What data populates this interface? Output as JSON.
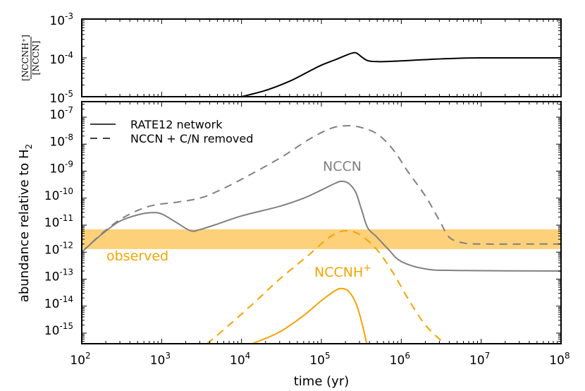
{
  "chart_data": [
    {
      "type": "line",
      "panel": "top",
      "ylabel_numerator": "[NCCNH⁺]",
      "ylabel_denominator": "[NCCN]",
      "xscale": "log",
      "yscale": "log",
      "xlim": [
        100,
        100000000
      ],
      "ylim": [
        1e-05,
        0.001
      ],
      "yticks": [
        {
          "exp": "-3",
          "value": 0.001
        },
        {
          "exp": "-4",
          "value": 0.0001
        },
        {
          "exp": "-5",
          "value": 1e-05
        }
      ],
      "series": [
        {
          "name": "ratio",
          "color": "#000000",
          "style": "solid",
          "points": [
            [
              10000,
              1e-05
            ],
            [
              20000,
              1.45e-05
            ],
            [
              40000,
              2.5e-05
            ],
            [
              70000,
              4.5e-05
            ],
            [
              100000,
              6.5e-05
            ],
            [
              150000,
              9e-05
            ],
            [
              200000,
              0.000115
            ],
            [
              250000,
              0.000135
            ],
            [
              280000,
              0.00013
            ],
            [
              320000,
              0.000105
            ],
            [
              380000,
              8.5e-05
            ],
            [
              500000,
              8e-05
            ],
            [
              800000,
              8.2e-05
            ],
            [
              2000000,
              9e-05
            ],
            [
              5000000,
              9.75e-05
            ],
            [
              10000000,
              0.0001
            ],
            [
              100000000,
              0.0001
            ]
          ]
        }
      ]
    },
    {
      "type": "line",
      "panel": "bottom",
      "xlabel": "time (yr)",
      "ylabel": "abundance relative to H",
      "ylabel_sub": "2",
      "xscale": "log",
      "yscale": "log",
      "xlim": [
        100,
        100000000
      ],
      "ylim": [
        4e-16,
        3.7e-07
      ],
      "xticks": [
        {
          "exp": "2",
          "value": 100
        },
        {
          "exp": "3",
          "value": 1000
        },
        {
          "exp": "4",
          "value": 10000
        },
        {
          "exp": "5",
          "value": 100000
        },
        {
          "exp": "6",
          "value": 1000000
        },
        {
          "exp": "7",
          "value": 10000000
        },
        {
          "exp": "8",
          "value": 100000000
        }
      ],
      "yticks": [
        {
          "exp": "-7",
          "value": 1e-07
        },
        {
          "exp": "-8",
          "value": 1e-08
        },
        {
          "exp": "-9",
          "value": 1e-09
        },
        {
          "exp": "-10",
          "value": 1e-10
        },
        {
          "exp": "-11",
          "value": 1e-11
        },
        {
          "exp": "-12",
          "value": 1e-12
        },
        {
          "exp": "-13",
          "value": 1e-13
        },
        {
          "exp": "-14",
          "value": 1e-14
        },
        {
          "exp": "-15",
          "value": 1e-15
        }
      ],
      "legend": {
        "placement": "top-left",
        "entries": [
          {
            "label": "RATE12 network",
            "style": "solid"
          },
          {
            "label": "NCCN + C/N removed",
            "style": "dashed"
          }
        ]
      },
      "band": {
        "label": "observed",
        "low": 1.3e-12,
        "high": 7e-12,
        "color": "#fdd17a"
      },
      "annotations": [
        {
          "text": "NCCN",
          "color": "#808080",
          "at": [
            180000,
            1.5e-09
          ]
        },
        {
          "text": "NCCNH",
          "sup": "+",
          "color": "#f5a300",
          "at": [
            180000,
            1e-13
          ]
        },
        {
          "text": "observed",
          "color": "#f5a300",
          "at": [
            400,
            6e-13
          ]
        }
      ],
      "series": [
        {
          "name": "NCCN (RATE12 network)",
          "color": "#808080",
          "style": "solid",
          "points": [
            [
              100,
              1e-12
            ],
            [
              150,
              3e-12
            ],
            [
              200,
              6e-12
            ],
            [
              300,
              1.4e-11
            ],
            [
              500,
              2.4e-11
            ],
            [
              750,
              2.9e-11
            ],
            [
              1000,
              2.6e-11
            ],
            [
              1500,
              1.3e-11
            ],
            [
              2300,
              6.2e-12
            ],
            [
              3000,
              6.8e-12
            ],
            [
              5000,
              1.1e-11
            ],
            [
              10000,
              2.2e-11
            ],
            [
              30000,
              5e-11
            ],
            [
              60000,
              1e-10
            ],
            [
              100000,
              2e-10
            ],
            [
              150000,
              3.6e-10
            ],
            [
              180000,
              4.2e-10
            ],
            [
              220000,
              3.5e-10
            ],
            [
              270000,
              1.6e-10
            ],
            [
              320000,
              3.5e-11
            ],
            [
              380000,
              8e-12
            ],
            [
              500000,
              3.5e-12
            ],
            [
              700000,
              1.2e-12
            ],
            [
              1000000,
              4.5e-13
            ],
            [
              2000000,
              2.4e-13
            ],
            [
              5000000,
              2.1e-13
            ],
            [
              100000000,
              2e-13
            ]
          ]
        },
        {
          "name": "NCCN (NCCN + C/N removed)",
          "color": "#808080",
          "style": "dashed",
          "points": [
            [
              100,
              1e-12
            ],
            [
              150,
              3.1e-12
            ],
            [
              200,
              6.5e-12
            ],
            [
              300,
              1.6e-11
            ],
            [
              500,
              3.5e-11
            ],
            [
              800,
              5.5e-11
            ],
            [
              1500,
              7e-11
            ],
            [
              3000,
              1e-10
            ],
            [
              5000,
              1.8e-10
            ],
            [
              10000,
              5e-10
            ],
            [
              30000,
              3e-09
            ],
            [
              70000,
              1.5e-08
            ],
            [
              130000,
              3.8e-08
            ],
            [
              200000,
              4.8e-08
            ],
            [
              300000,
              4.3e-08
            ],
            [
              500000,
              2.4e-08
            ],
            [
              800000,
              6e-09
            ],
            [
              1200000,
              1e-09
            ],
            [
              2000000,
              1.2e-10
            ],
            [
              3000000,
              1.5e-11
            ],
            [
              4000000,
              3.5e-12
            ],
            [
              6000000,
              2.2e-12
            ],
            [
              10000000,
              2e-12
            ],
            [
              100000000,
              2e-12
            ]
          ]
        },
        {
          "name": "NCCNH+ (RATE12 network)",
          "color": "#f5a300",
          "style": "solid",
          "points": [
            [
              13500,
              4e-16
            ],
            [
              30000,
              1.1e-15
            ],
            [
              60000,
              4.5e-15
            ],
            [
              100000,
              1.6e-14
            ],
            [
              150000,
              3.8e-14
            ],
            [
              180000,
              4.5e-14
            ],
            [
              220000,
              3.5e-14
            ],
            [
              270000,
              1.3e-14
            ],
            [
              320000,
              2.5e-15
            ],
            [
              370000,
              4e-16
            ]
          ]
        },
        {
          "name": "NCCNH+ (NCCN + C/N removed)",
          "color": "#f5a300",
          "style": "dashed",
          "points": [
            [
              3700,
              4e-16
            ],
            [
              7000,
              2e-15
            ],
            [
              15000,
              1.5e-14
            ],
            [
              30000,
              1e-13
            ],
            [
              70000,
              8e-13
            ],
            [
              130000,
              3.8e-12
            ],
            [
              200000,
              6.2e-12
            ],
            [
              300000,
              4.5e-12
            ],
            [
              500000,
              1.2e-12
            ],
            [
              800000,
              1.6e-13
            ],
            [
              1200000,
              2e-14
            ],
            [
              2000000,
              2e-15
            ],
            [
              3500000,
              4e-16
            ]
          ]
        }
      ]
    }
  ]
}
